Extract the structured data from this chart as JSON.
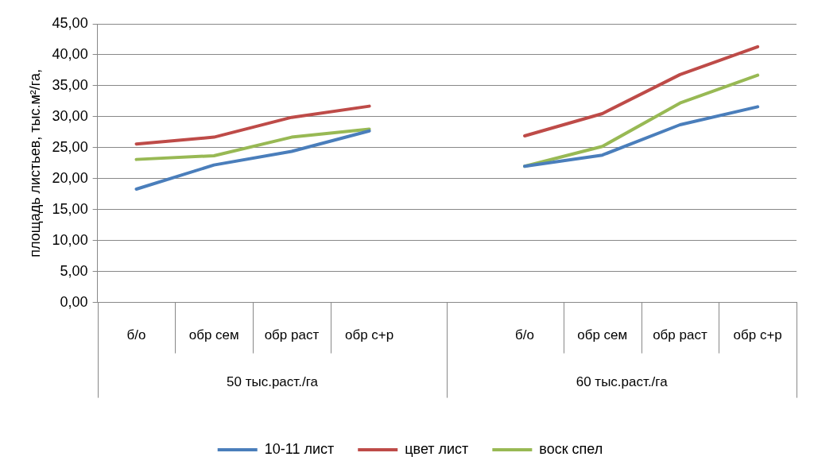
{
  "chart_data": {
    "type": "line",
    "ylabel": "площадь листьев, тыс.м²/га,",
    "categories": [
      "б/о",
      "обр сем",
      "обр раст",
      "обр с+р",
      null,
      "б/о",
      "обр сем",
      "обр раст",
      "обр с+р"
    ],
    "annotations": [
      "50 тыс.раст./га",
      "60 тыс.раст./га"
    ],
    "series": [
      {
        "name": "10-11 лист",
        "color": "#4a7ebb",
        "values": [
          18.3,
          22.2,
          24.4,
          27.7,
          null,
          22.0,
          23.8,
          28.7,
          31.6
        ]
      },
      {
        "name": "цвет лист",
        "color": "#be4b48",
        "values": [
          25.6,
          26.7,
          29.9,
          31.7,
          null,
          26.9,
          30.5,
          36.8,
          41.3
        ]
      },
      {
        "name": "воск спел",
        "color": "#98b954",
        "values": [
          23.1,
          23.7,
          26.7,
          28.0,
          null,
          22.0,
          25.2,
          32.2,
          36.7
        ]
      }
    ],
    "ylim": [
      0,
      45
    ],
    "yticks": [
      {
        "value": 0,
        "label": "0,00"
      },
      {
        "value": 5,
        "label": "5,00"
      },
      {
        "value": 10,
        "label": "10,00"
      },
      {
        "value": 15,
        "label": "15,00"
      },
      {
        "value": 20,
        "label": "20,00"
      },
      {
        "value": 25,
        "label": "25,00"
      },
      {
        "value": 30,
        "label": "30,00"
      },
      {
        "value": 35,
        "label": "35,00"
      },
      {
        "value": 40,
        "label": "40,00"
      },
      {
        "value": 45,
        "label": "45,00"
      }
    ],
    "grid": "y",
    "legend": "bottom",
    "marker": "none",
    "line_style": "solid"
  }
}
